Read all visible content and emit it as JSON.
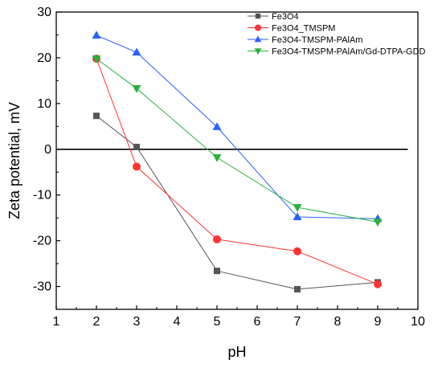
{
  "chart_data": {
    "type": "line",
    "xlabel": "pH",
    "ylabel": "Zeta potential, mV",
    "xlim": [
      1,
      10
    ],
    "ylim": [
      -35,
      30
    ],
    "xticks": [
      1,
      2,
      3,
      4,
      5,
      6,
      7,
      8,
      9,
      10
    ],
    "yticks": [
      -30,
      -20,
      -10,
      0,
      10,
      20,
      30
    ],
    "reference_line": 0,
    "legend_position": "top-right",
    "series": [
      {
        "name": "Fe3O4",
        "color": "#555555",
        "marker": "square",
        "x": [
          2,
          3,
          5,
          7,
          9
        ],
        "y": [
          7.3,
          0.5,
          -26.6,
          -30.6,
          -29.1
        ]
      },
      {
        "name": "Fe3O4_TMSPM",
        "color": "#ff3333",
        "marker": "circle",
        "x": [
          2,
          3,
          5,
          7,
          9
        ],
        "y": [
          19.8,
          -3.8,
          -19.7,
          -22.3,
          -29.5
        ]
      },
      {
        "name": "Fe3O4-TMSPM-PAlAm",
        "color": "#2962ff",
        "marker": "triangle-up",
        "x": [
          2,
          3,
          5,
          7,
          9
        ],
        "y": [
          24.9,
          21.2,
          4.9,
          -14.8,
          -15.2
        ]
      },
      {
        "name": "Fe3O4-TMSPM-PAlAm/Gd-DTPA-GDD",
        "color": "#2ab040",
        "marker": "triangle-down",
        "x": [
          2,
          3,
          5,
          7,
          9
        ],
        "y": [
          19.8,
          13.3,
          -1.8,
          -12.7,
          -15.9
        ]
      }
    ]
  }
}
